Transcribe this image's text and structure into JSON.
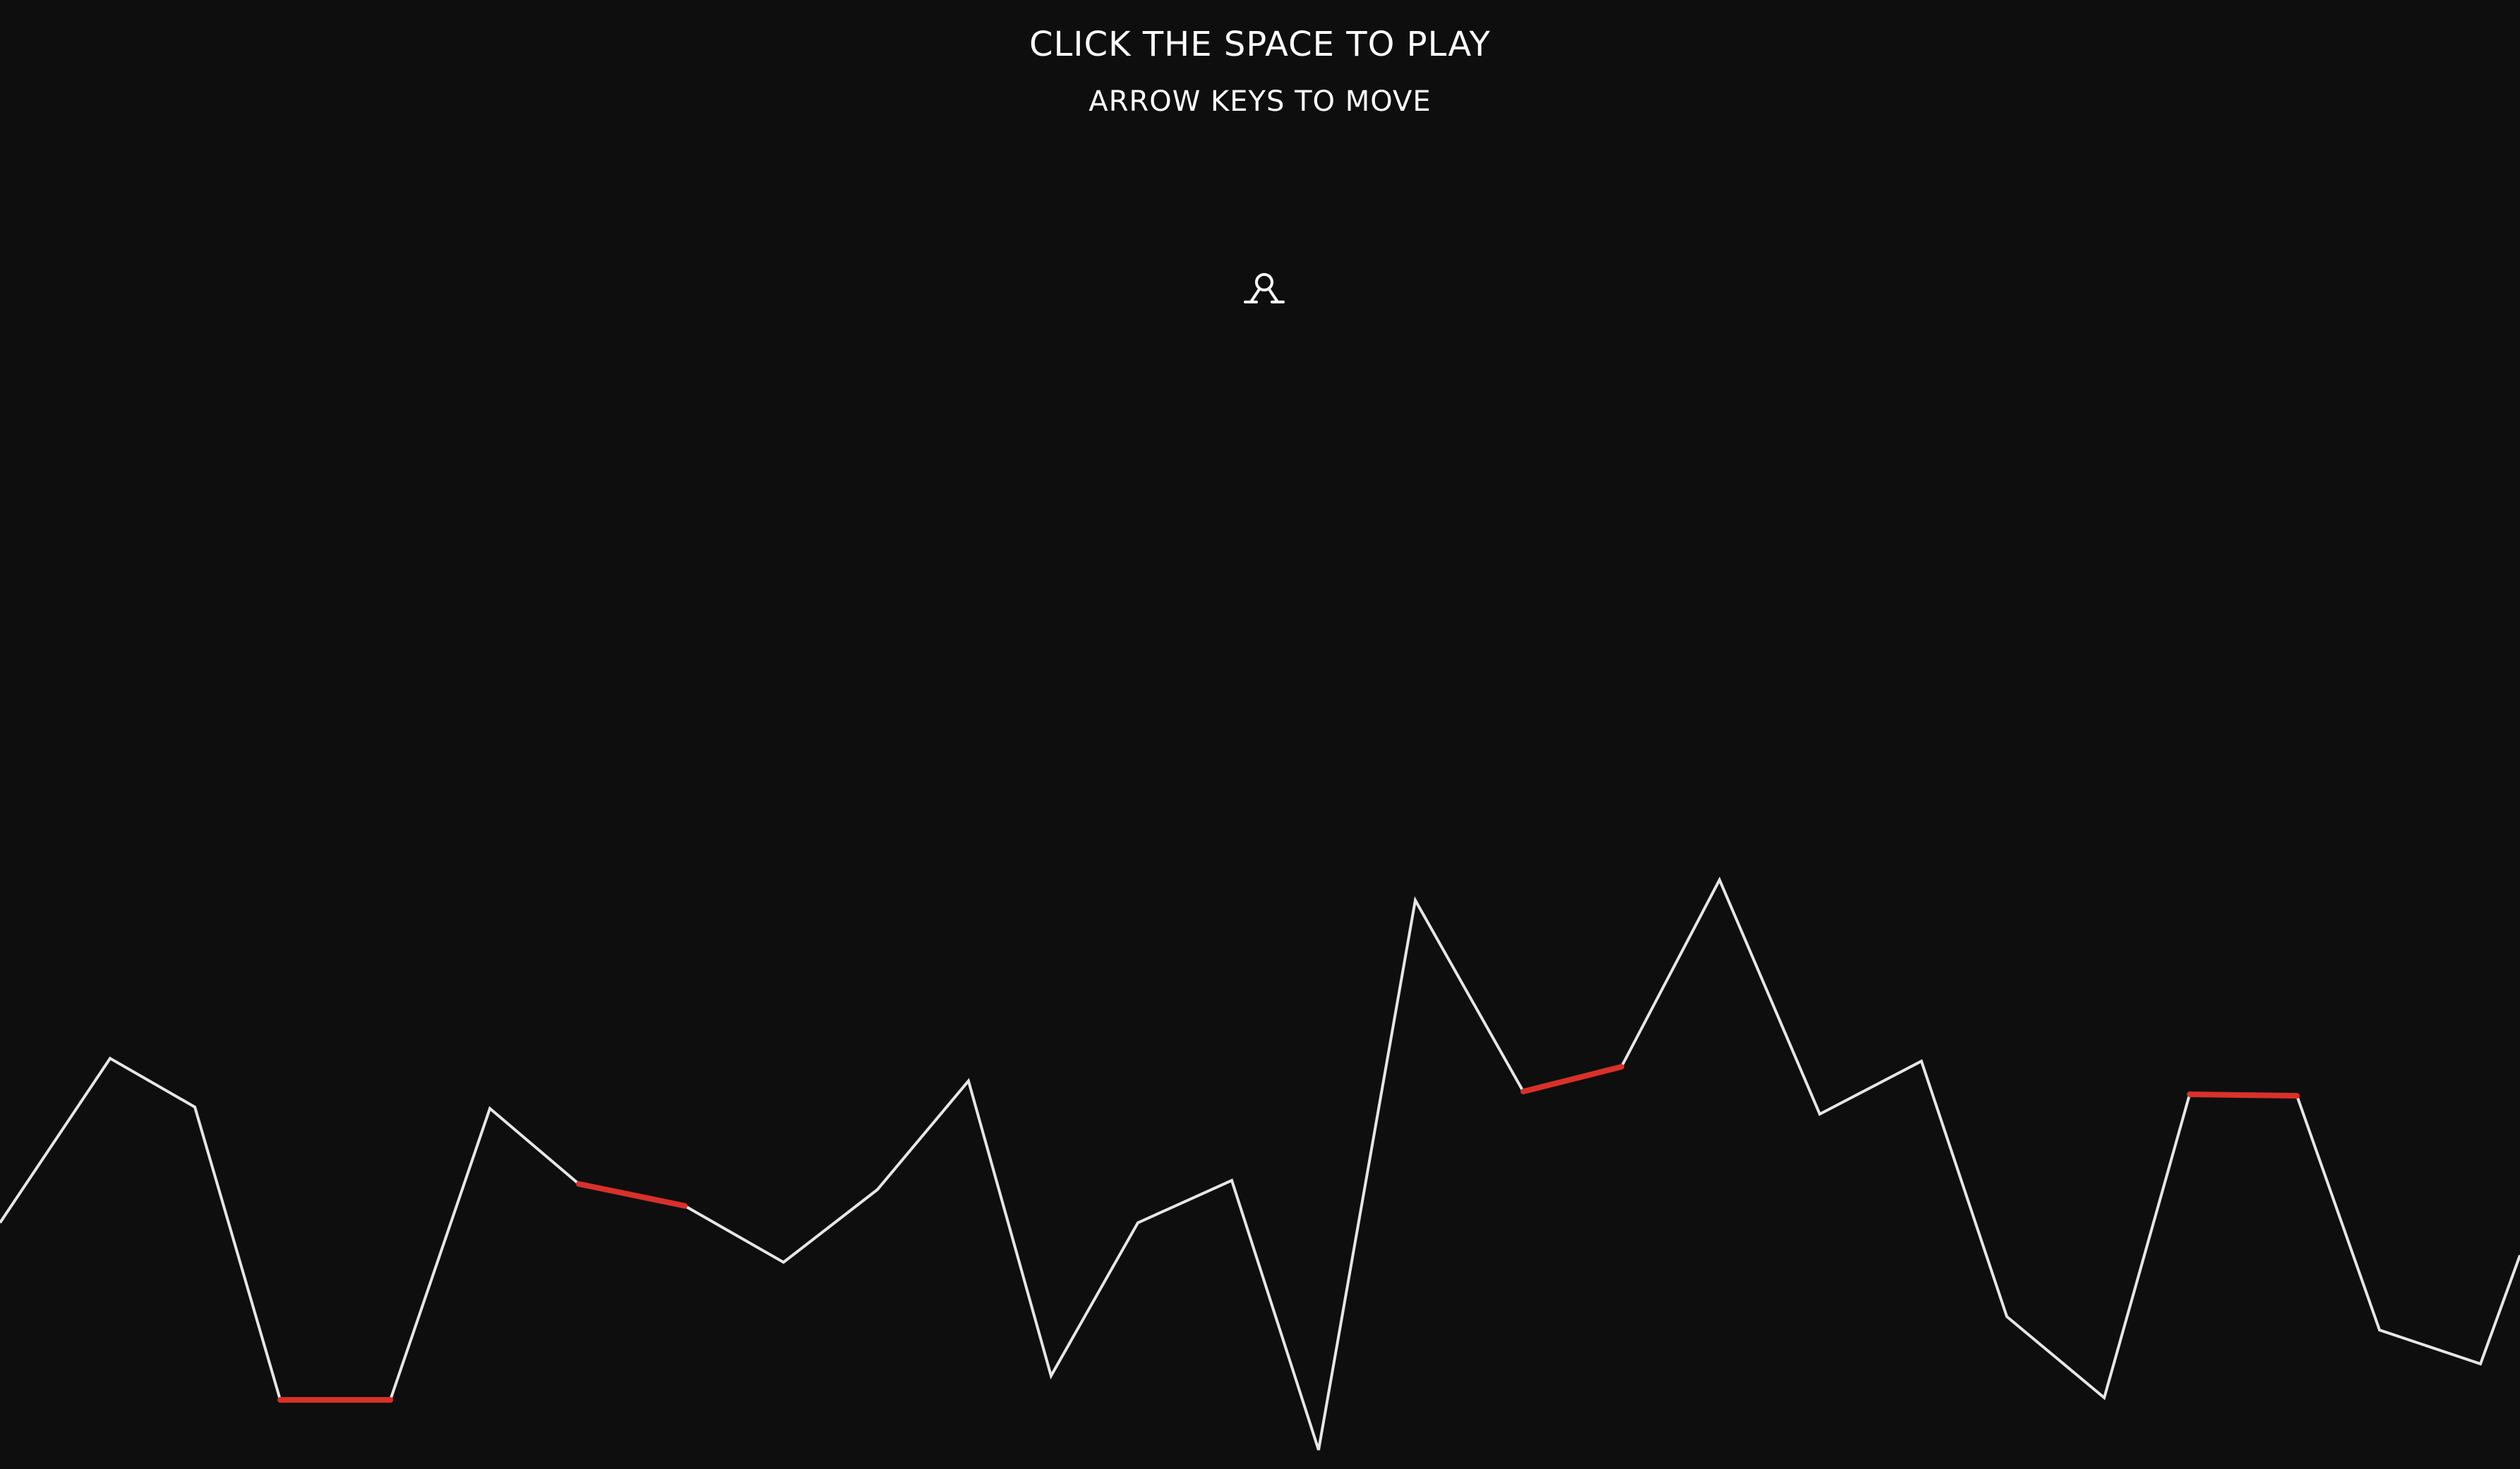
{
  "game": {
    "title": "CLICK THE SPACE TO PLAY",
    "subtitle": "ARROW KEYS TO MOVE",
    "icons": {
      "lander": "lunar-lander-icon"
    },
    "colors": {
      "background": "#0e0e0e",
      "terrain": "#e6e6e6",
      "landing_pad": "#d8312a",
      "text": "#ffffff"
    }
  }
}
